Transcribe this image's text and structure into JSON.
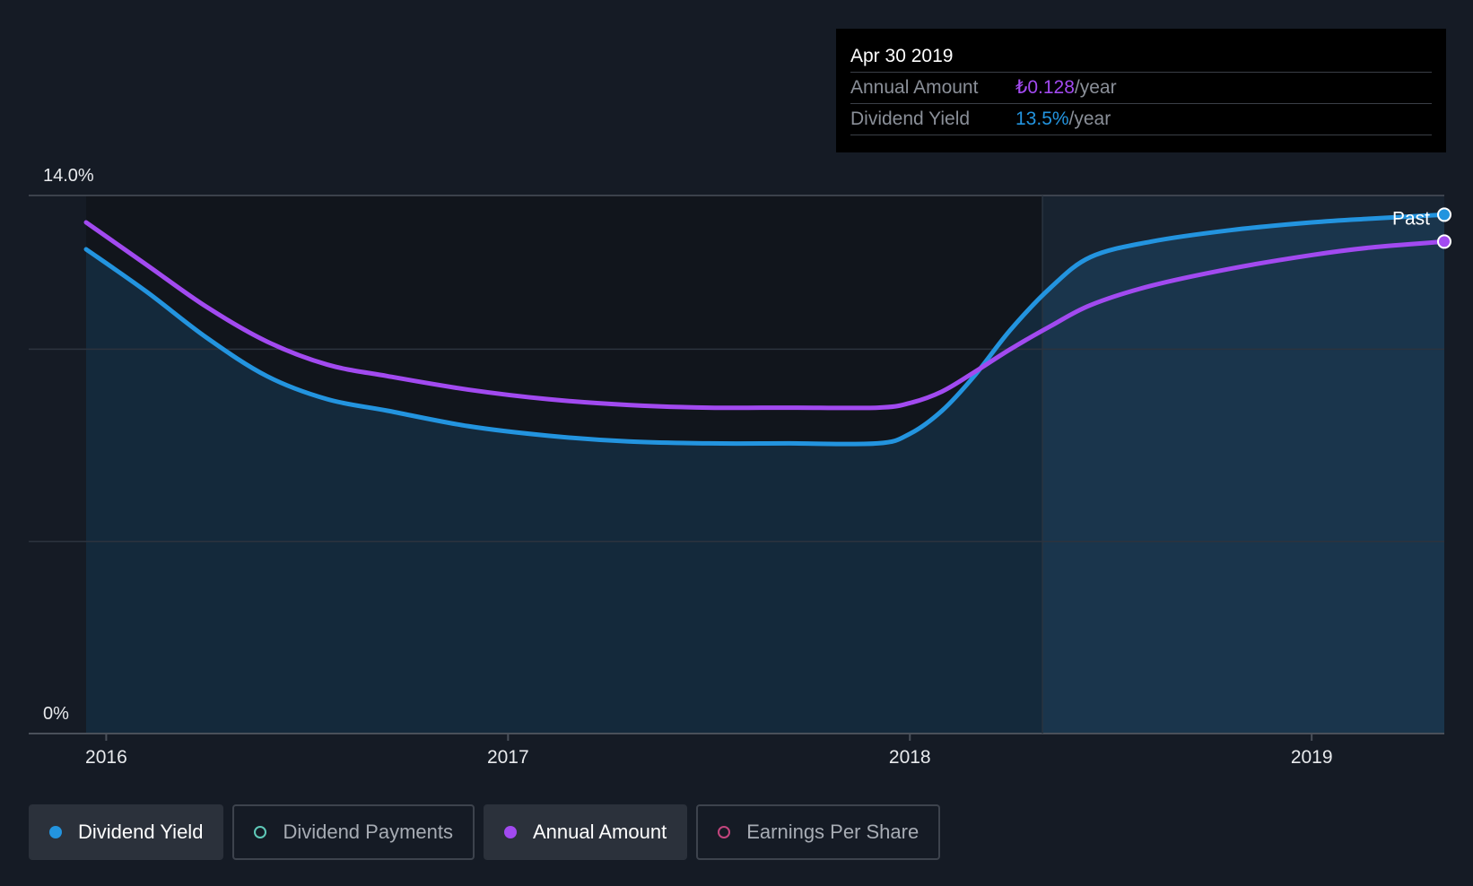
{
  "chart_data": {
    "type": "line",
    "y_axis": {
      "min": 0,
      "max": 14,
      "tick_labels": [
        "14.0%",
        "0%"
      ],
      "gridlines": [
        0,
        5,
        10,
        14
      ]
    },
    "x_axis": {
      "min": 2015.95,
      "max": 2019.33,
      "tick_labels": [
        "2016",
        "2017",
        "2018",
        "2019"
      ],
      "ticks": [
        2016,
        2017,
        2018,
        2019
      ]
    },
    "past_start": 2018.33,
    "past_label": "Past",
    "series": [
      {
        "name": "Dividend Yield",
        "color": "#2394df",
        "filled": true,
        "points": [
          [
            2015.95,
            12.6
          ],
          [
            2016.1,
            11.5
          ],
          [
            2016.25,
            10.3
          ],
          [
            2016.4,
            9.3
          ],
          [
            2016.55,
            8.7
          ],
          [
            2016.7,
            8.4
          ],
          [
            2016.9,
            8.0
          ],
          [
            2017.1,
            7.75
          ],
          [
            2017.3,
            7.6
          ],
          [
            2017.5,
            7.55
          ],
          [
            2017.7,
            7.55
          ],
          [
            2017.92,
            7.55
          ],
          [
            2018.0,
            7.8
          ],
          [
            2018.08,
            8.4
          ],
          [
            2018.16,
            9.3
          ],
          [
            2018.25,
            10.5
          ],
          [
            2018.35,
            11.6
          ],
          [
            2018.45,
            12.4
          ],
          [
            2018.6,
            12.8
          ],
          [
            2018.8,
            13.1
          ],
          [
            2019.0,
            13.3
          ],
          [
            2019.15,
            13.4
          ],
          [
            2019.33,
            13.5
          ]
        ]
      },
      {
        "name": "Annual Amount",
        "color": "#a24af0",
        "filled": false,
        "points": [
          [
            2015.95,
            13.3
          ],
          [
            2016.1,
            12.2
          ],
          [
            2016.25,
            11.1
          ],
          [
            2016.4,
            10.2
          ],
          [
            2016.55,
            9.6
          ],
          [
            2016.7,
            9.3
          ],
          [
            2016.9,
            8.95
          ],
          [
            2017.1,
            8.7
          ],
          [
            2017.3,
            8.55
          ],
          [
            2017.5,
            8.48
          ],
          [
            2017.7,
            8.48
          ],
          [
            2017.92,
            8.48
          ],
          [
            2018.0,
            8.6
          ],
          [
            2018.08,
            8.9
          ],
          [
            2018.16,
            9.4
          ],
          [
            2018.25,
            10.0
          ],
          [
            2018.35,
            10.6
          ],
          [
            2018.45,
            11.15
          ],
          [
            2018.6,
            11.65
          ],
          [
            2018.8,
            12.1
          ],
          [
            2019.0,
            12.45
          ],
          [
            2019.15,
            12.65
          ],
          [
            2019.33,
            12.8
          ]
        ]
      }
    ]
  },
  "tooltip": {
    "date": "Apr 30 2019",
    "annual_amount_label": "Annual Amount",
    "annual_amount_value": "₺0.128",
    "annual_amount_unit": "/year",
    "dividend_yield_label": "Dividend Yield",
    "dividend_yield_value": "13.5%",
    "dividend_yield_unit": "/year",
    "annual_color": "#a24af0",
    "yield_color": "#2394df"
  },
  "legend": [
    {
      "label": "Dividend Yield",
      "color": "#2394df",
      "active": true
    },
    {
      "label": "Dividend Payments",
      "color": "#5fc9b8",
      "active": false
    },
    {
      "label": "Annual Amount",
      "color": "#a24af0",
      "active": true
    },
    {
      "label": "Earnings Per Share",
      "color": "#c2457d",
      "active": false
    }
  ]
}
